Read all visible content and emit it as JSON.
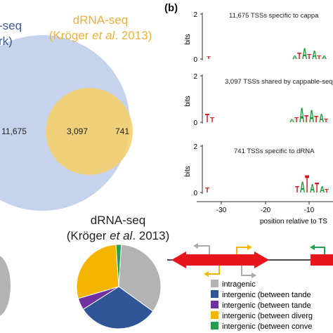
{
  "panel_b_label": "(b)",
  "venn": {
    "left_title_line1": "-seq",
    "left_title_line2": "rk)",
    "right_title_line1": "dRNA-seq",
    "right_title_author": "Kröger ",
    "right_title_etal": "et al",
    "right_title_year": ". 2013)",
    "right_title_open": "(",
    "counts": {
      "left_only": "11,675",
      "overlap": "3,097",
      "right_only": "741"
    },
    "colors": {
      "left": "#c5d3ec",
      "right": "#f3cf6e",
      "overlap": "#e9c56a",
      "text_right": "#e8b13d",
      "text_left": "#3a5a99"
    }
  },
  "pie_titles": {
    "line1": "dRNA-seq",
    "open": "(Kröger ",
    "etal": "et al",
    "year": ". 2013)"
  },
  "chart_data": [
    {
      "type": "pie",
      "title": "dRNA-seq (Kröger et al. 2013)",
      "categories": [
        "intragenic",
        "intergenic (between tande",
        "intergenic (between tande",
        "intergenic (between diverg",
        "intergenic (between conve"
      ],
      "values": [
        0.34,
        0.31,
        0.045,
        0.285,
        0.02
      ],
      "colors": [
        "#b3b3b3",
        "#2f5597",
        "#7030a0",
        "#f5b400",
        "#22a050"
      ]
    }
  ],
  "logos": {
    "ylabel": "bits",
    "panels": [
      {
        "caption": "11,675 TSSs specific to cappa",
        "ymax": "2",
        "ymin": "0"
      },
      {
        "caption": "3,097 TSSs shared by cappable-seq",
        "ymax": "2",
        "ymin": "0"
      },
      {
        "caption": "741 TSSs specific to dRNA",
        "ymax": "2",
        "ymin": "0"
      }
    ],
    "xticks": [
      "-30",
      "-20",
      "-10"
    ],
    "xlabel": "position relative to TS"
  },
  "legend": {
    "items": [
      {
        "label": "intragenic",
        "color": "#b3b3b3"
      },
      {
        "label": "intergenic (between tande",
        "color": "#2f5597"
      },
      {
        "label": "intergenic (between tande",
        "color": "#7030a0"
      },
      {
        "label": "intergenic (between diverg",
        "color": "#f5b400"
      },
      {
        "label": "intergenic (between conve",
        "color": "#22a050"
      }
    ]
  },
  "gene_diagram": {
    "gene_color": "#e8141c",
    "line_color": "#111111"
  }
}
